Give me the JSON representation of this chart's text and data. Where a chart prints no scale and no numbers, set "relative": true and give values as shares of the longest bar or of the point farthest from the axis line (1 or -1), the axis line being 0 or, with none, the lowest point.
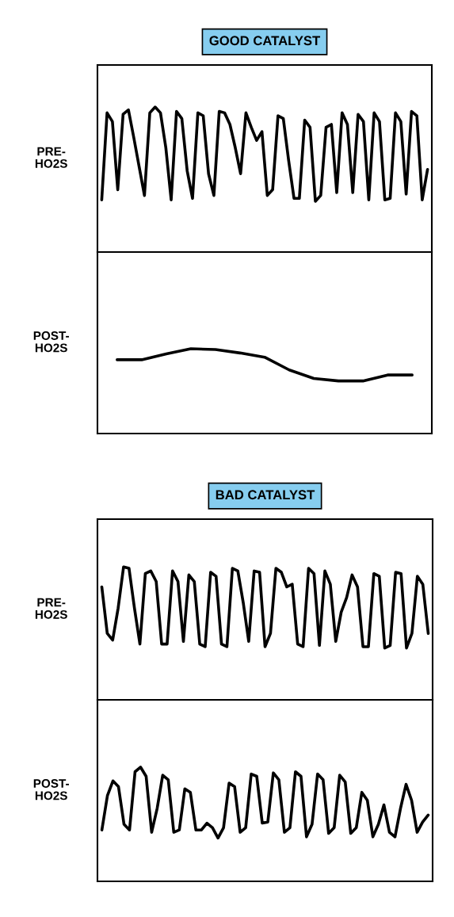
{
  "chart_data": [
    {
      "type": "line",
      "title": "GOOD CATALYST",
      "ylabel": "PRE-\nHO2S",
      "relative": true,
      "grid": false,
      "legend": false,
      "categories": [
        null,
        null,
        null,
        null,
        null,
        null,
        null,
        null,
        null,
        null,
        null,
        null,
        null,
        null,
        null,
        null,
        null,
        null,
        null,
        null,
        null,
        null,
        null,
        null,
        null,
        null,
        null,
        null,
        null,
        null,
        null,
        null,
        null,
        null,
        null,
        null,
        null,
        null,
        null,
        null,
        null,
        null,
        null,
        null,
        null,
        null,
        null,
        null,
        null,
        null,
        null,
        null,
        null,
        null,
        null,
        null,
        null,
        null,
        null,
        null,
        null,
        null
      ],
      "series": [
        {
          "color": "#000000",
          "values": [
            0.36,
            0.96,
            0.9,
            0.43,
            0.95,
            0.98,
            0.79,
            0.59,
            0.39,
            0.96,
            1.0,
            0.96,
            0.72,
            0.36,
            0.97,
            0.92,
            0.56,
            0.37,
            0.96,
            0.94,
            0.54,
            0.39,
            0.97,
            0.96,
            0.88,
            0.72,
            0.54,
            0.96,
            0.86,
            0.77,
            0.83,
            0.39,
            0.43,
            0.94,
            0.92,
            0.63,
            0.37,
            0.37,
            0.91,
            0.86,
            0.35,
            0.39,
            0.86,
            0.88,
            0.41,
            0.96,
            0.88,
            0.41,
            0.95,
            0.9,
            0.36,
            0.96,
            0.9,
            0.36,
            0.37,
            0.96,
            0.9,
            0.4,
            0.97,
            0.94,
            0.36,
            0.57
          ]
        }
      ]
    },
    {
      "type": "line",
      "ylabel": "POST-\nHO2S",
      "relative": true,
      "grid": false,
      "legend": false,
      "categories": [
        null,
        null,
        null,
        null,
        null,
        null,
        null,
        null,
        null,
        null,
        null,
        null,
        null
      ],
      "series": [
        {
          "color": "#000000",
          "values": [
            0.87,
            0.87,
            0.94,
            1.0,
            0.99,
            0.95,
            0.9,
            0.75,
            0.65,
            0.62,
            0.62,
            0.69,
            0.69
          ]
        }
      ]
    },
    {
      "type": "line",
      "title": "BAD CATALYST",
      "ylabel": "PRE-\nHO2S",
      "relative": true,
      "grid": false,
      "legend": false,
      "categories": [
        null,
        null,
        null,
        null,
        null,
        null,
        null,
        null,
        null,
        null,
        null,
        null,
        null,
        null,
        null,
        null,
        null,
        null,
        null,
        null,
        null,
        null,
        null,
        null,
        null,
        null,
        null,
        null,
        null,
        null,
        null,
        null,
        null,
        null,
        null,
        null,
        null,
        null,
        null,
        null,
        null,
        null,
        null,
        null,
        null,
        null,
        null,
        null,
        null,
        null,
        null,
        null,
        null,
        null,
        null,
        null,
        null,
        null,
        null,
        null,
        null
      ],
      "series": [
        {
          "color": "#000000",
          "values": [
            0.85,
            0.5,
            0.45,
            0.69,
            1.0,
            0.99,
            0.69,
            0.42,
            0.95,
            0.97,
            0.89,
            0.42,
            0.42,
            0.97,
            0.89,
            0.44,
            0.94,
            0.89,
            0.42,
            0.4,
            0.96,
            0.93,
            0.42,
            0.4,
            0.99,
            0.97,
            0.73,
            0.44,
            0.97,
            0.96,
            0.4,
            0.5,
            0.99,
            0.96,
            0.85,
            0.87,
            0.42,
            0.4,
            0.99,
            0.95,
            0.41,
            0.97,
            0.87,
            0.44,
            0.66,
            0.77,
            0.94,
            0.85,
            0.4,
            0.4,
            0.95,
            0.93,
            0.39,
            0.41,
            0.96,
            0.95,
            0.39,
            0.5,
            0.93,
            0.87,
            0.5
          ]
        }
      ]
    },
    {
      "type": "line",
      "ylabel": "POST-\nHO2S",
      "relative": true,
      "grid": false,
      "legend": false,
      "categories": [
        null,
        null,
        null,
        null,
        null,
        null,
        null,
        null,
        null,
        null,
        null,
        null,
        null,
        null,
        null,
        null,
        null,
        null,
        null,
        null,
        null,
        null,
        null,
        null,
        null,
        null,
        null,
        null,
        null,
        null,
        null,
        null,
        null,
        null,
        null,
        null,
        null,
        null,
        null,
        null,
        null,
        null,
        null,
        null,
        null,
        null,
        null,
        null,
        null,
        null,
        null,
        null,
        null,
        null,
        null,
        null,
        null,
        null,
        null,
        null
      ],
      "series": [
        {
          "color": "#000000",
          "values": [
            0.45,
            0.75,
            0.88,
            0.83,
            0.5,
            0.45,
            0.96,
            1.0,
            0.92,
            0.43,
            0.64,
            0.93,
            0.89,
            0.43,
            0.45,
            0.81,
            0.78,
            0.45,
            0.45,
            0.51,
            0.47,
            0.38,
            0.47,
            0.86,
            0.83,
            0.43,
            0.47,
            0.94,
            0.92,
            0.51,
            0.52,
            0.95,
            0.89,
            0.43,
            0.47,
            0.96,
            0.92,
            0.39,
            0.5,
            0.94,
            0.89,
            0.42,
            0.47,
            0.93,
            0.87,
            0.42,
            0.47,
            0.78,
            0.71,
            0.39,
            0.5,
            0.67,
            0.43,
            0.39,
            0.64,
            0.85,
            0.71,
            0.43,
            0.52,
            0.58
          ]
        }
      ]
    }
  ]
}
